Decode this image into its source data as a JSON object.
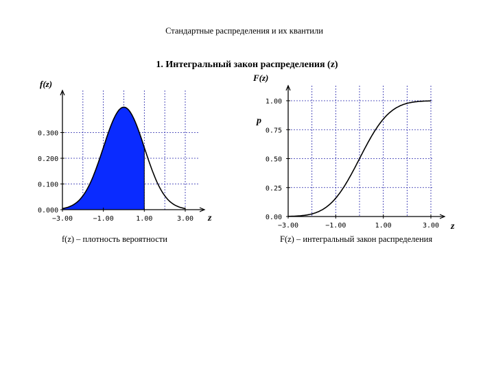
{
  "page": {
    "title": "Стандартные распределения и их квантили",
    "section_title": "1. Интегральный закон распределения (z)"
  },
  "colors": {
    "fill": "#0a2bff",
    "line": "#000000",
    "grid": "#2222aa"
  },
  "chart_data": [
    {
      "type": "area",
      "ylabel": "f(z)",
      "xlabel": "z",
      "caption": "f(z) – плотность вероятности",
      "x_ticks": [
        -3.0,
        -1.0,
        1.0,
        3.0
      ],
      "x_tick_labels": [
        "−3.00",
        "−1.00",
        "1.00",
        "3.00"
      ],
      "y_ticks": [
        0.0,
        0.1,
        0.2,
        0.3
      ],
      "y_tick_labels": [
        "0.000",
        "0.100",
        "0.200",
        "0.300"
      ],
      "xlim": [
        -3.0,
        3.0
      ],
      "ylim": [
        0.0,
        0.4
      ],
      "grid": true,
      "shaded_upper_z": 1.0,
      "x": [
        -3.0,
        -2.5,
        -2.0,
        -1.5,
        -1.0,
        -0.5,
        0.0,
        0.5,
        1.0,
        1.5,
        2.0,
        2.5,
        3.0
      ],
      "y": [
        0.004,
        0.018,
        0.054,
        0.13,
        0.242,
        0.352,
        0.399,
        0.352,
        0.242,
        0.13,
        0.054,
        0.018,
        0.004
      ]
    },
    {
      "type": "line",
      "ylabel": "F(z)",
      "y_inner_label": "p",
      "xlabel": "z",
      "caption": "F(z) – интегральный закон распределения",
      "x_ticks": [
        -3.0,
        -1.0,
        1.0,
        3.0
      ],
      "x_tick_labels": [
        "−3.00",
        "−1.00",
        "1.00",
        "3.00"
      ],
      "y_ticks": [
        0.0,
        0.25,
        0.5,
        0.75,
        1.0
      ],
      "y_tick_labels": [
        "0.00",
        "0.25",
        "0.50",
        "0.75",
        "1.00"
      ],
      "xlim": [
        -3.0,
        3.0
      ],
      "ylim": [
        0.0,
        1.0
      ],
      "grid": true,
      "x": [
        -3.0,
        -2.5,
        -2.0,
        -1.5,
        -1.0,
        -0.5,
        0.0,
        0.5,
        1.0,
        1.5,
        2.0,
        2.5,
        3.0
      ],
      "y": [
        0.001,
        0.006,
        0.023,
        0.067,
        0.159,
        0.309,
        0.5,
        0.691,
        0.841,
        0.933,
        0.977,
        0.994,
        0.999
      ]
    }
  ]
}
